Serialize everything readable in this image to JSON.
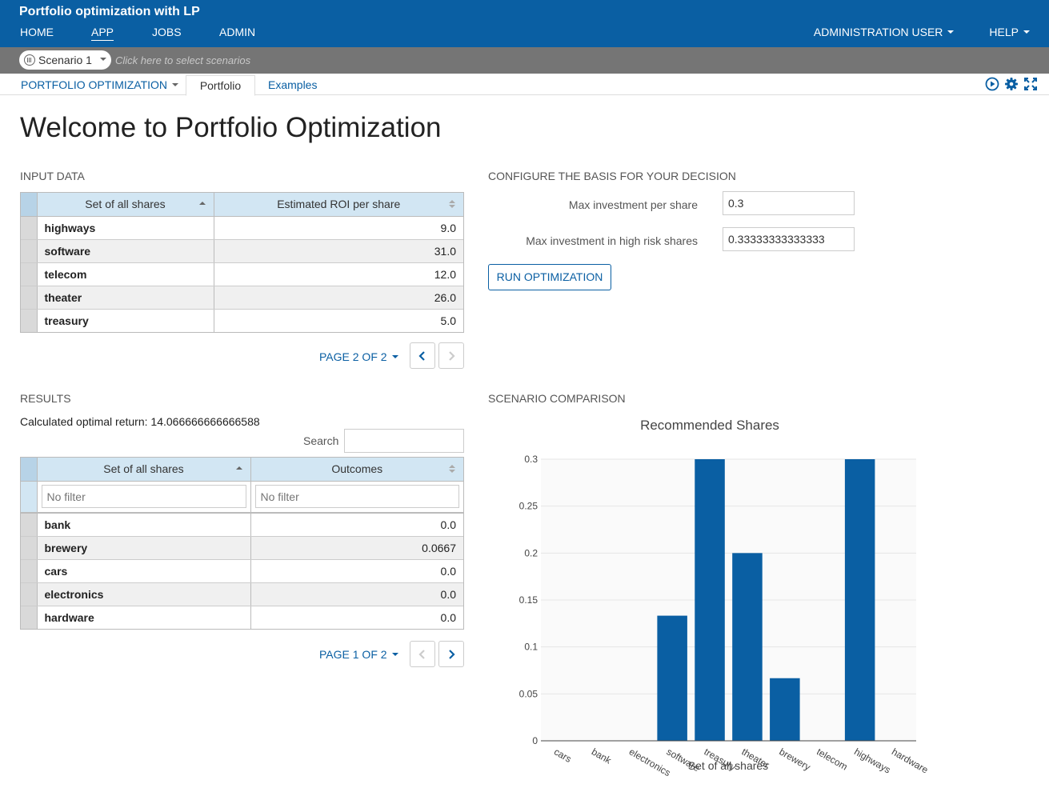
{
  "header": {
    "app_title": "Portfolio optimization with LP",
    "nav": [
      "HOME",
      "APP",
      "JOBS",
      "ADMIN"
    ],
    "user_menu": "ADMINISTRATION USER",
    "help_menu": "HELP"
  },
  "scenario_bar": {
    "scenario_name": "Scenario 1",
    "hint": "Click here to select scenarios"
  },
  "tabs": {
    "dropdown": "PORTFOLIO OPTIMIZATION",
    "active": "Portfolio",
    "other": "Examples"
  },
  "page_title": "Welcome to Portfolio Optimization",
  "input_data": {
    "section_title": "INPUT DATA",
    "columns": [
      "Set of all shares",
      "Estimated ROI per share"
    ],
    "rows": [
      [
        "highways",
        "9.0"
      ],
      [
        "software",
        "31.0"
      ],
      [
        "telecom",
        "12.0"
      ],
      [
        "theater",
        "26.0"
      ],
      [
        "treasury",
        "5.0"
      ]
    ],
    "pager": "PAGE 2 OF 2"
  },
  "config": {
    "section_title": "CONFIGURE THE BASIS FOR YOUR DECISION",
    "max_invest_label": "Max investment per share",
    "max_invest_value": "0.3",
    "max_risk_label": "Max investment in high risk shares",
    "max_risk_value": "0.33333333333333",
    "run_button": "RUN OPTIMIZATION"
  },
  "results": {
    "section_title": "RESULTS",
    "optimal_return": "Calculated optimal return: 14.066666666666588",
    "search_label": "Search",
    "columns": [
      "Set of all shares",
      "Outcomes"
    ],
    "filter_placeholder": "No filter",
    "rows": [
      [
        "bank",
        "0.0"
      ],
      [
        "brewery",
        "0.0667"
      ],
      [
        "cars",
        "0.0"
      ],
      [
        "electronics",
        "0.0"
      ],
      [
        "hardware",
        "0.0"
      ]
    ],
    "pager": "PAGE 1 OF 2"
  },
  "comparison": {
    "section_title": "SCENARIO COMPARISON"
  },
  "colors": {
    "brand": "#0a5fa3",
    "scenario_bar": "#757575",
    "bar": "#0a5fa3"
  },
  "chart_data": {
    "type": "bar",
    "title": "Recommended Shares",
    "xlabel": "Set of all shares",
    "ylabel": "",
    "categories": [
      "cars",
      "bank",
      "electronics",
      "software",
      "treasury",
      "theater",
      "brewery",
      "telecom",
      "highways",
      "hardware"
    ],
    "values": [
      0,
      0,
      0,
      0.1333,
      0.3,
      0.2,
      0.0667,
      0,
      0.3,
      0
    ],
    "ylim": [
      0,
      0.3
    ],
    "yticks": [
      "0",
      "0.05",
      "0.1",
      "0.15",
      "0.2",
      "0.25",
      "0.3"
    ],
    "grid": true,
    "legend": "none"
  }
}
